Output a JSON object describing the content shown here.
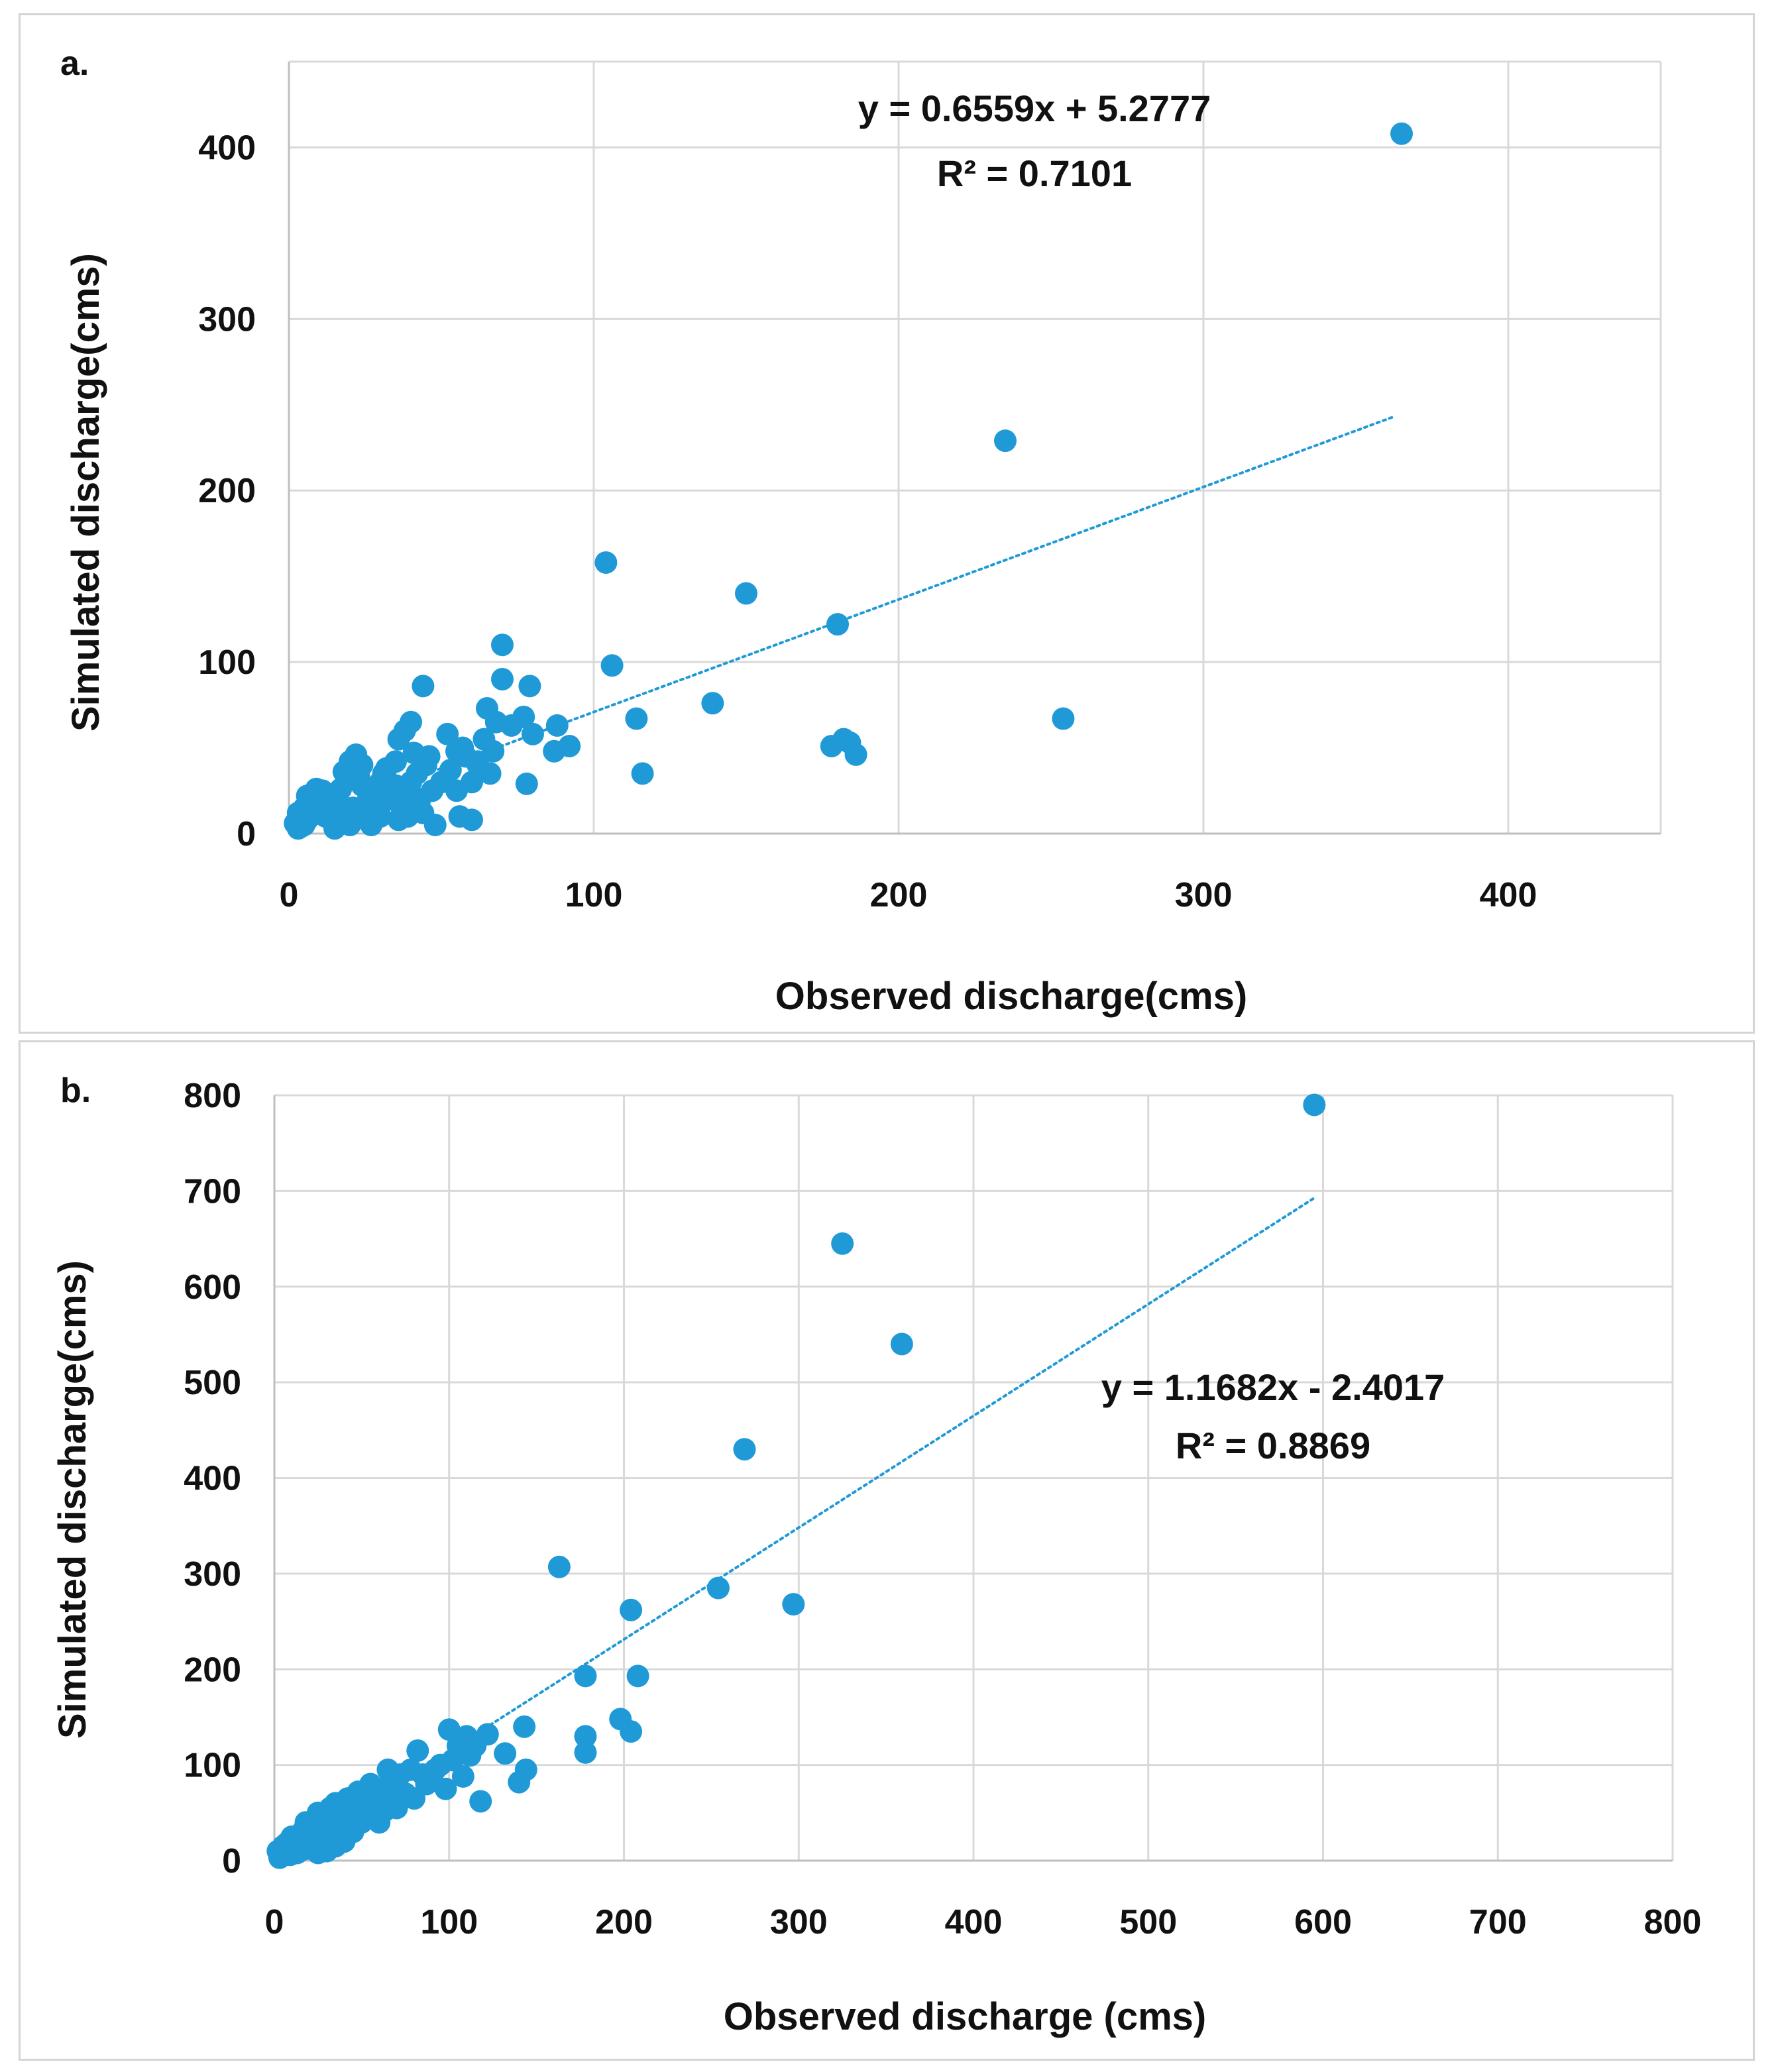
{
  "chart_data": [
    {
      "type": "scatter",
      "panel_label": "a.",
      "xlabel": "Observed discharge(cms)",
      "ylabel": "Simulated discharge(cms)",
      "xlim": [
        0,
        450
      ],
      "ylim": [
        0,
        450
      ],
      "xticks": [
        0,
        100,
        200,
        300,
        400
      ],
      "yticks": [
        0,
        100,
        200,
        300,
        400
      ],
      "grid": true,
      "color": "#1f9ad6",
      "trendline": {
        "slope": 0.6559,
        "intercept": 5.2777,
        "x_range": [
          0,
          362
        ],
        "style": "dotted"
      },
      "equation": "y = 0.6559x + 5.2777",
      "r2": "R² = 0.7101",
      "points": [
        [
          365,
          408
        ],
        [
          235,
          229
        ],
        [
          254,
          67
        ],
        [
          150,
          140
        ],
        [
          104,
          158
        ],
        [
          106,
          98
        ],
        [
          180,
          122
        ],
        [
          182,
          55
        ],
        [
          178,
          51
        ],
        [
          184,
          53
        ],
        [
          186,
          46
        ],
        [
          139,
          76
        ],
        [
          114,
          67
        ],
        [
          116,
          35
        ],
        [
          70,
          110
        ],
        [
          70,
          90
        ],
        [
          65,
          73
        ],
        [
          68,
          65
        ],
        [
          73,
          63
        ],
        [
          80,
          58
        ],
        [
          77,
          68
        ],
        [
          79,
          86
        ],
        [
          88,
          63
        ],
        [
          87,
          48
        ],
        [
          92,
          51
        ],
        [
          44,
          86
        ],
        [
          40,
          65
        ],
        [
          38,
          60
        ],
        [
          36,
          55
        ],
        [
          52,
          58
        ],
        [
          55,
          48
        ],
        [
          58,
          45
        ],
        [
          62,
          40
        ],
        [
          66,
          35
        ],
        [
          78,
          29
        ],
        [
          56,
          10
        ],
        [
          48,
          5
        ],
        [
          60,
          8
        ],
        [
          62,
          42
        ],
        [
          60,
          30
        ],
        [
          55,
          25
        ],
        [
          50,
          30
        ],
        [
          45,
          40
        ],
        [
          42,
          35
        ],
        [
          40,
          30
        ],
        [
          35,
          42
        ],
        [
          32,
          38
        ],
        [
          30,
          30
        ],
        [
          28,
          25
        ],
        [
          26,
          20
        ],
        [
          24,
          28
        ],
        [
          22,
          46
        ],
        [
          24,
          40
        ],
        [
          20,
          42
        ],
        [
          18,
          36
        ],
        [
          16,
          20
        ],
        [
          14,
          15
        ],
        [
          12,
          10
        ],
        [
          10,
          18
        ],
        [
          9,
          12
        ],
        [
          8,
          20
        ],
        [
          7,
          10
        ],
        [
          6,
          8
        ],
        [
          5,
          5
        ],
        [
          4,
          4
        ],
        [
          3,
          3
        ],
        [
          2,
          6
        ],
        [
          3,
          12
        ],
        [
          5,
          15
        ],
        [
          6,
          22
        ],
        [
          11,
          25
        ],
        [
          15,
          10
        ],
        [
          19,
          8
        ],
        [
          21,
          15
        ],
        [
          25,
          12
        ],
        [
          29,
          18
        ],
        [
          33,
          20
        ],
        [
          37,
          15
        ],
        [
          39,
          10
        ],
        [
          43,
          20
        ],
        [
          47,
          25
        ],
        [
          35,
          28
        ],
        [
          30,
          10
        ],
        [
          27,
          5
        ],
        [
          41,
          47
        ],
        [
          46,
          45
        ],
        [
          53,
          37
        ],
        [
          57,
          50
        ],
        [
          64,
          55
        ],
        [
          67,
          48
        ],
        [
          38,
          22
        ],
        [
          31,
          35
        ],
        [
          23,
          33
        ],
        [
          17,
          26
        ],
        [
          13,
          22
        ],
        [
          9,
          26
        ],
        [
          44,
          12
        ],
        [
          36,
          8
        ],
        [
          20,
          5
        ],
        [
          15,
          3
        ]
      ]
    },
    {
      "type": "scatter",
      "panel_label": "b.",
      "xlabel": "Observed discharge (cms)",
      "ylabel": "Simulated discharge(cms)",
      "xlim": [
        0,
        800
      ],
      "ylim": [
        0,
        800
      ],
      "xticks": [
        0,
        100,
        200,
        300,
        400,
        500,
        600,
        700,
        800
      ],
      "yticks": [
        0,
        100,
        200,
        300,
        400,
        500,
        600,
        700,
        800
      ],
      "grid": true,
      "color": "#1f9ad6",
      "trendline": {
        "slope": 1.1682,
        "intercept": -2.4017,
        "x_range": [
          0,
          595
        ],
        "style": "dotted"
      },
      "equation": "y = 1.1682x  - 2.4017",
      "r2": "R² = 0.8869",
      "points": [
        [
          595,
          790
        ],
        [
          325,
          645
        ],
        [
          359,
          540
        ],
        [
          269,
          430
        ],
        [
          163,
          307
        ],
        [
          204,
          262
        ],
        [
          254,
          285
        ],
        [
          297,
          268
        ],
        [
          178,
          193
        ],
        [
          208,
          193
        ],
        [
          198,
          148
        ],
        [
          178,
          130
        ],
        [
          204,
          135
        ],
        [
          178,
          113
        ],
        [
          143,
          140
        ],
        [
          132,
          112
        ],
        [
          144,
          95
        ],
        [
          140,
          82
        ],
        [
          118,
          62
        ],
        [
          122,
          132
        ],
        [
          110,
          130
        ],
        [
          100,
          137
        ],
        [
          105,
          120
        ],
        [
          95,
          100
        ],
        [
          90,
          85
        ],
        [
          82,
          115
        ],
        [
          78,
          95
        ],
        [
          72,
          90
        ],
        [
          68,
          82
        ],
        [
          62,
          75
        ],
        [
          58,
          70
        ],
        [
          55,
          60
        ],
        [
          50,
          55
        ],
        [
          46,
          48
        ],
        [
          42,
          65
        ],
        [
          40,
          50
        ],
        [
          38,
          45
        ],
        [
          35,
          60
        ],
        [
          32,
          55
        ],
        [
          30,
          40
        ],
        [
          28,
          35
        ],
        [
          25,
          50
        ],
        [
          22,
          30
        ],
        [
          20,
          25
        ],
        [
          18,
          40
        ],
        [
          15,
          20
        ],
        [
          12,
          15
        ],
        [
          10,
          25
        ],
        [
          8,
          10
        ],
        [
          6,
          8
        ],
        [
          5,
          15
        ],
        [
          4,
          5
        ],
        [
          3,
          3
        ],
        [
          2,
          10
        ],
        [
          35,
          15
        ],
        [
          40,
          20
        ],
        [
          30,
          10
        ],
        [
          25,
          8
        ],
        [
          48,
          72
        ],
        [
          55,
          80
        ],
        [
          65,
          95
        ],
        [
          75,
          70
        ],
        [
          85,
          90
        ],
        [
          98,
          75
        ],
        [
          108,
          88
        ],
        [
          112,
          110
        ],
        [
          60,
          40
        ],
        [
          70,
          55
        ],
        [
          80,
          65
        ],
        [
          45,
          30
        ],
        [
          50,
          40
        ],
        [
          27,
          20
        ],
        [
          33,
          25
        ],
        [
          37,
          30
        ],
        [
          44,
          38
        ],
        [
          52,
          45
        ],
        [
          57,
          48
        ],
        [
          63,
          52
        ],
        [
          67,
          60
        ],
        [
          73,
          65
        ],
        [
          87,
          80
        ],
        [
          92,
          95
        ],
        [
          102,
          105
        ],
        [
          115,
          120
        ],
        [
          17,
          12
        ],
        [
          13,
          8
        ],
        [
          9,
          6
        ],
        [
          7,
          18
        ],
        [
          11,
          22
        ],
        [
          16,
          30
        ],
        [
          21,
          35
        ],
        [
          26,
          42
        ],
        [
          31,
          48
        ],
        [
          36,
          52
        ],
        [
          41,
          58
        ],
        [
          47,
          62
        ]
      ]
    }
  ]
}
